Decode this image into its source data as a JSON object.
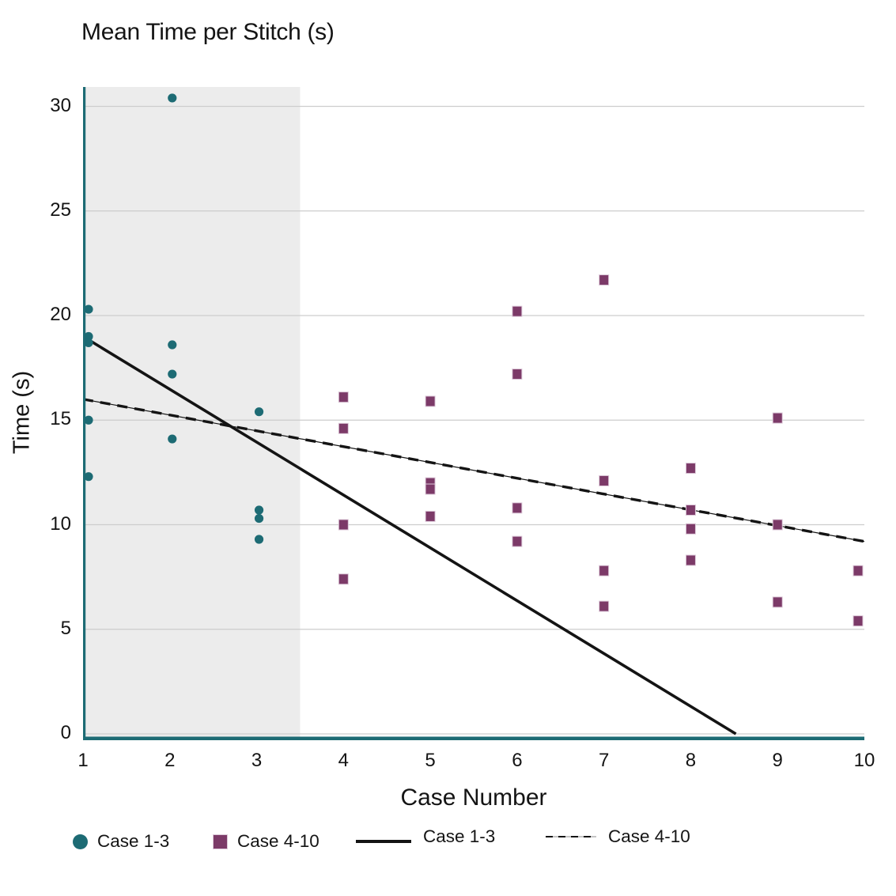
{
  "title": "Mean Time per Stitch (s)",
  "axes": {
    "x_title": "Case Number",
    "y_title": "Time (s)",
    "x_tick_labels": [
      "1",
      "2",
      "3",
      "4",
      "5",
      "6",
      "7",
      "8",
      "9",
      "10"
    ],
    "y_tick_labels": [
      "0",
      "5",
      "10",
      "15",
      "20",
      "25",
      "30"
    ]
  },
  "colors": {
    "teal": "#1d6b74",
    "purple": "#7c3a68",
    "purple_border": "#dcc8d8",
    "trend_line": "#141414",
    "shaded_region": "#ececec",
    "gridline": "#cdcdcd",
    "axis_teal": "#1d6b74",
    "text": "#141414"
  },
  "chart_data": {
    "type": "scatter",
    "title": "Mean Time per Stitch (s)",
    "xlabel": "Case Number",
    "ylabel": "Time (s)",
    "xlim": [
      1,
      10
    ],
    "ylim": [
      0,
      31
    ],
    "x_ticks": [
      1,
      2,
      3,
      4,
      5,
      6,
      7,
      8,
      9,
      10
    ],
    "y_ticks": [
      0,
      5,
      10,
      15,
      20,
      25,
      30
    ],
    "grid": true,
    "legend_position": "bottom",
    "shaded_region": {
      "x_start": 1,
      "x_end": 3.5
    },
    "series": [
      {
        "name": "Case 1-3",
        "marker": "circle",
        "color": "#1d6b74",
        "points": [
          [
            1,
            20.3
          ],
          [
            1,
            19.0
          ],
          [
            1,
            18.7
          ],
          [
            1,
            15.0
          ],
          [
            1,
            12.3
          ],
          [
            2,
            30.4
          ],
          [
            2,
            18.6
          ],
          [
            2,
            17.2
          ],
          [
            2,
            14.1
          ],
          [
            3,
            15.4
          ],
          [
            3,
            10.7
          ],
          [
            3,
            10.3
          ],
          [
            3,
            9.3
          ]
        ]
      },
      {
        "name": "Case 4-10",
        "marker": "square",
        "color": "#7c3a68",
        "points": [
          [
            4,
            16.1
          ],
          [
            4,
            14.6
          ],
          [
            4,
            10.0
          ],
          [
            4,
            7.4
          ],
          [
            5,
            15.9
          ],
          [
            5,
            12.0
          ],
          [
            5,
            11.7
          ],
          [
            5,
            10.4
          ],
          [
            6,
            20.2
          ],
          [
            6,
            17.2
          ],
          [
            6,
            10.8
          ],
          [
            6,
            9.2
          ],
          [
            7,
            21.7
          ],
          [
            7,
            12.1
          ],
          [
            7,
            7.8
          ],
          [
            7,
            6.1
          ],
          [
            8,
            12.7
          ],
          [
            8,
            10.7
          ],
          [
            8,
            9.8
          ],
          [
            8,
            8.3
          ],
          [
            9,
            15.1
          ],
          [
            9,
            10.0
          ],
          [
            9,
            6.3
          ],
          [
            10,
            7.8
          ],
          [
            10,
            5.4
          ]
        ]
      }
    ],
    "trend_lines": [
      {
        "name": "Case 1-3",
        "style": "solid",
        "from": [
          1,
          19.0
        ],
        "to": [
          8.52,
          0
        ]
      },
      {
        "name": "Case 4-10",
        "style": "dashed",
        "from": [
          1,
          16.0
        ],
        "to": [
          10,
          9.2
        ]
      }
    ]
  },
  "legend": {
    "items": [
      {
        "label": "Case 1-3",
        "swatch": "circle"
      },
      {
        "label": "Case 4-10",
        "swatch": "square"
      },
      {
        "label": "Case 1-3",
        "swatch": "solid-line"
      },
      {
        "label": "Case 4-10",
        "swatch": "dashed-line"
      }
    ]
  }
}
